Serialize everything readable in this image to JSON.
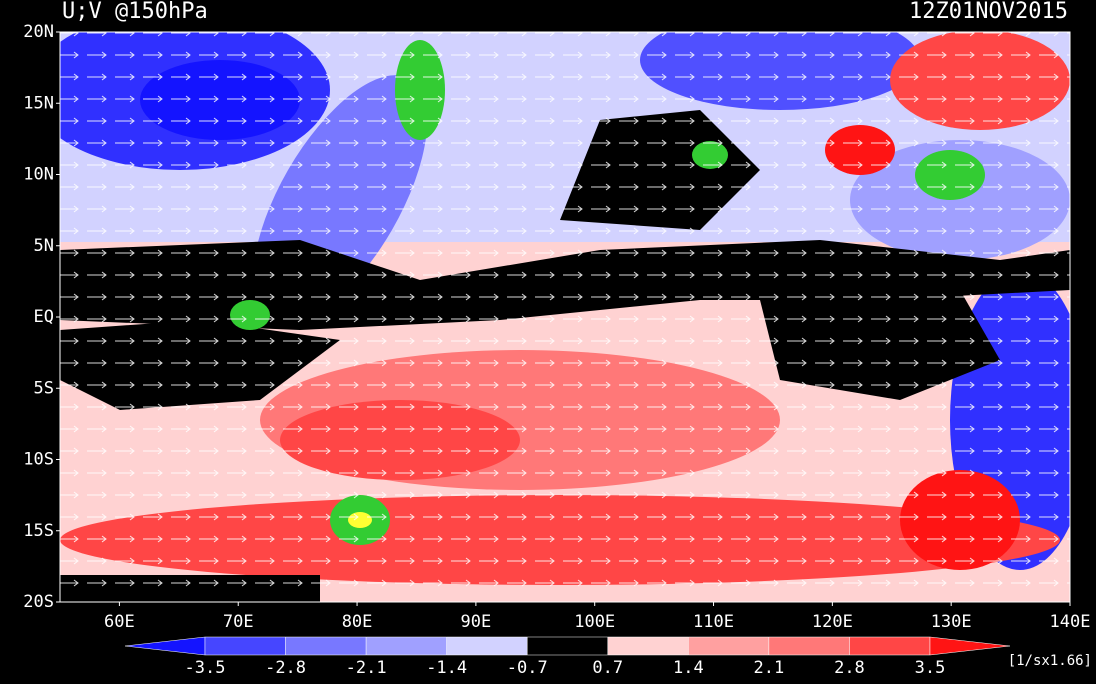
{
  "header": {
    "title": "U;V @150hPa",
    "time": "12Z01NOV2015"
  },
  "map": {
    "lat_labels": [
      "20N",
      "15N",
      "10N",
      "5N",
      "EQ",
      "5S",
      "10S",
      "15S",
      "20S"
    ],
    "lon_labels": [
      "60E",
      "70E",
      "80E",
      "90E",
      "100E",
      "110E",
      "120E",
      "130E",
      "140E"
    ]
  },
  "colorbar": {
    "colors": [
      "#1414ff",
      "#4646ff",
      "#7878ff",
      "#a0a0ff",
      "#d2d2ff",
      "#000000",
      "#ffd2d2",
      "#ffa0a0",
      "#ff7878",
      "#ff4646",
      "#ff1414"
    ],
    "labels": [
      "-3.5",
      "-2.8",
      "-2.1",
      "-1.4",
      "-0.7",
      "0.7",
      "1.4",
      "2.1",
      "2.8",
      "3.5"
    ],
    "units": "[1/sx1.66]"
  }
}
